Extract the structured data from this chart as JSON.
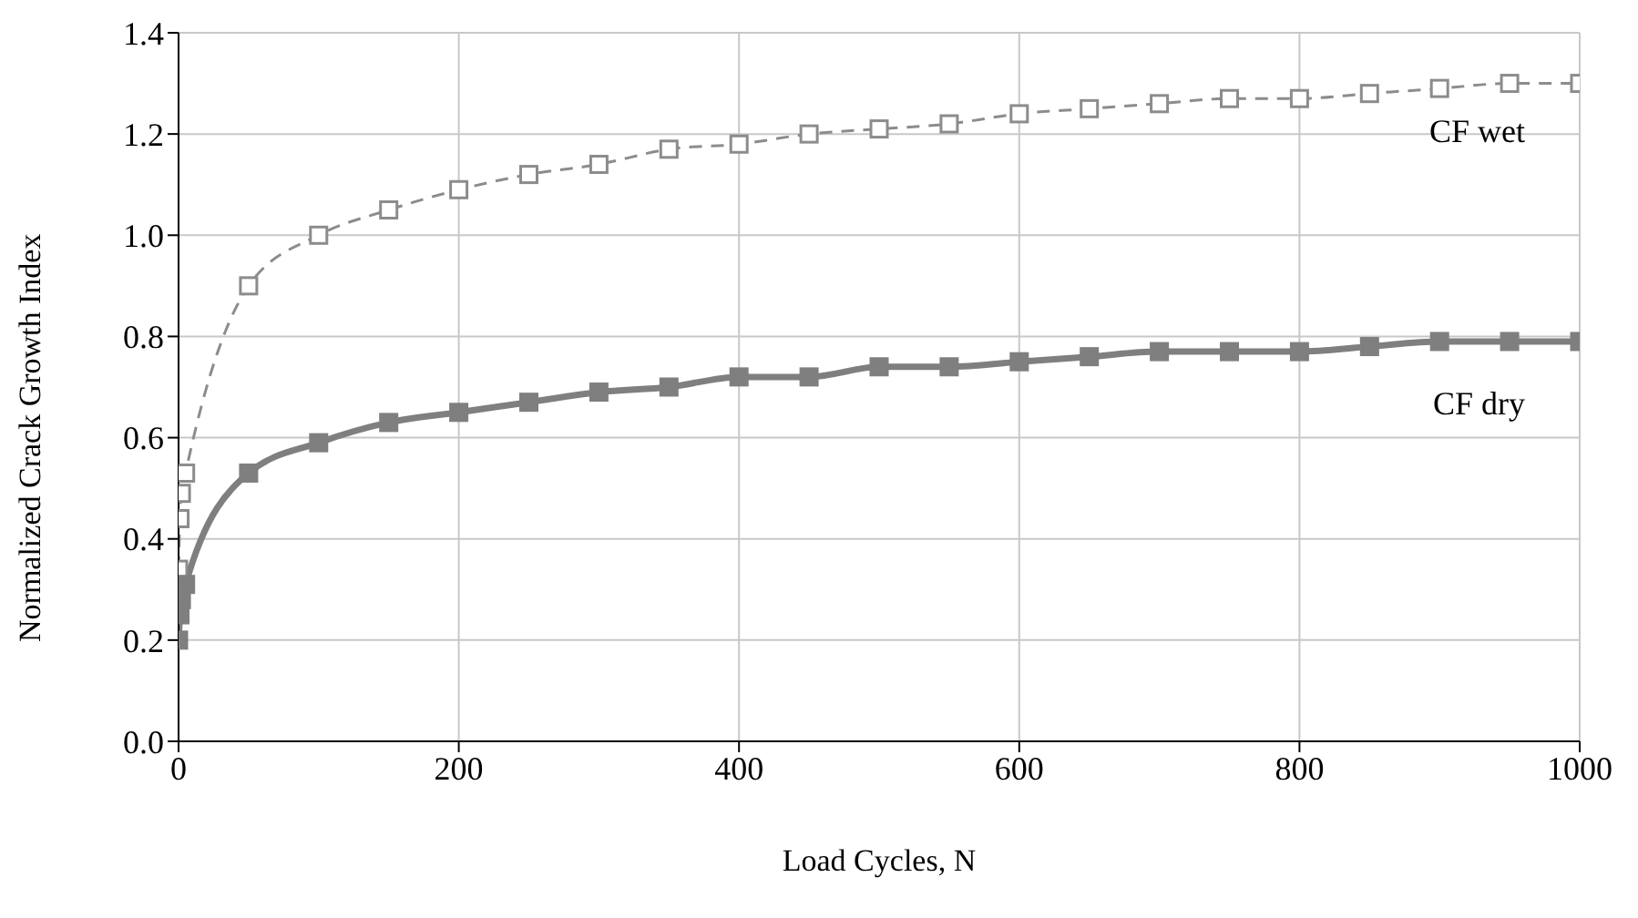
{
  "chart_data": {
    "type": "line",
    "xlabel": "Load Cycles, N",
    "ylabel": "Normalized Crack Growth Index",
    "x": [
      0,
      1,
      2,
      5,
      50,
      100,
      150,
      200,
      250,
      300,
      350,
      400,
      450,
      500,
      550,
      600,
      650,
      700,
      750,
      800,
      850,
      900,
      950,
      1000
    ],
    "series": [
      {
        "name": "CF wet",
        "color": "#8c8c8c",
        "line_style": "dashed",
        "marker": "square",
        "values": [
          0.34,
          0.44,
          0.49,
          0.53,
          0.9,
          1.0,
          1.05,
          1.09,
          1.12,
          1.14,
          1.17,
          1.18,
          1.2,
          1.21,
          1.22,
          1.24,
          1.25,
          1.26,
          1.27,
          1.27,
          1.28,
          1.29,
          1.3,
          1.3
        ]
      },
      {
        "name": "CF dry",
        "color": "#7f7f7f",
        "line_style": "solid",
        "marker": "square",
        "values": [
          0.2,
          0.25,
          0.28,
          0.31,
          0.53,
          0.59,
          0.63,
          0.65,
          0.67,
          0.69,
          0.7,
          0.72,
          0.72,
          0.74,
          0.74,
          0.75,
          0.76,
          0.77,
          0.77,
          0.77,
          0.78,
          0.79,
          0.79,
          0.79
        ]
      }
    ],
    "xlim": [
      0,
      1000
    ],
    "xticks": [
      0,
      200,
      400,
      600,
      800,
      1000
    ],
    "ylim": [
      0,
      1.4
    ],
    "yticks": [
      {
        "value": 0,
        "label": "0.0"
      },
      {
        "value": 0.2,
        "label": "0.2"
      },
      {
        "value": 0.4,
        "label": "0.4"
      },
      {
        "value": 0.6,
        "label": "0.6"
      },
      {
        "value": 0.8,
        "label": "0.8"
      },
      {
        "value": 1,
        "label": "1.0"
      },
      {
        "value": 1.2,
        "label": "1.2"
      },
      {
        "value": 1.4,
        "label": "1.4"
      }
    ],
    "grid": true,
    "legend": false
  }
}
